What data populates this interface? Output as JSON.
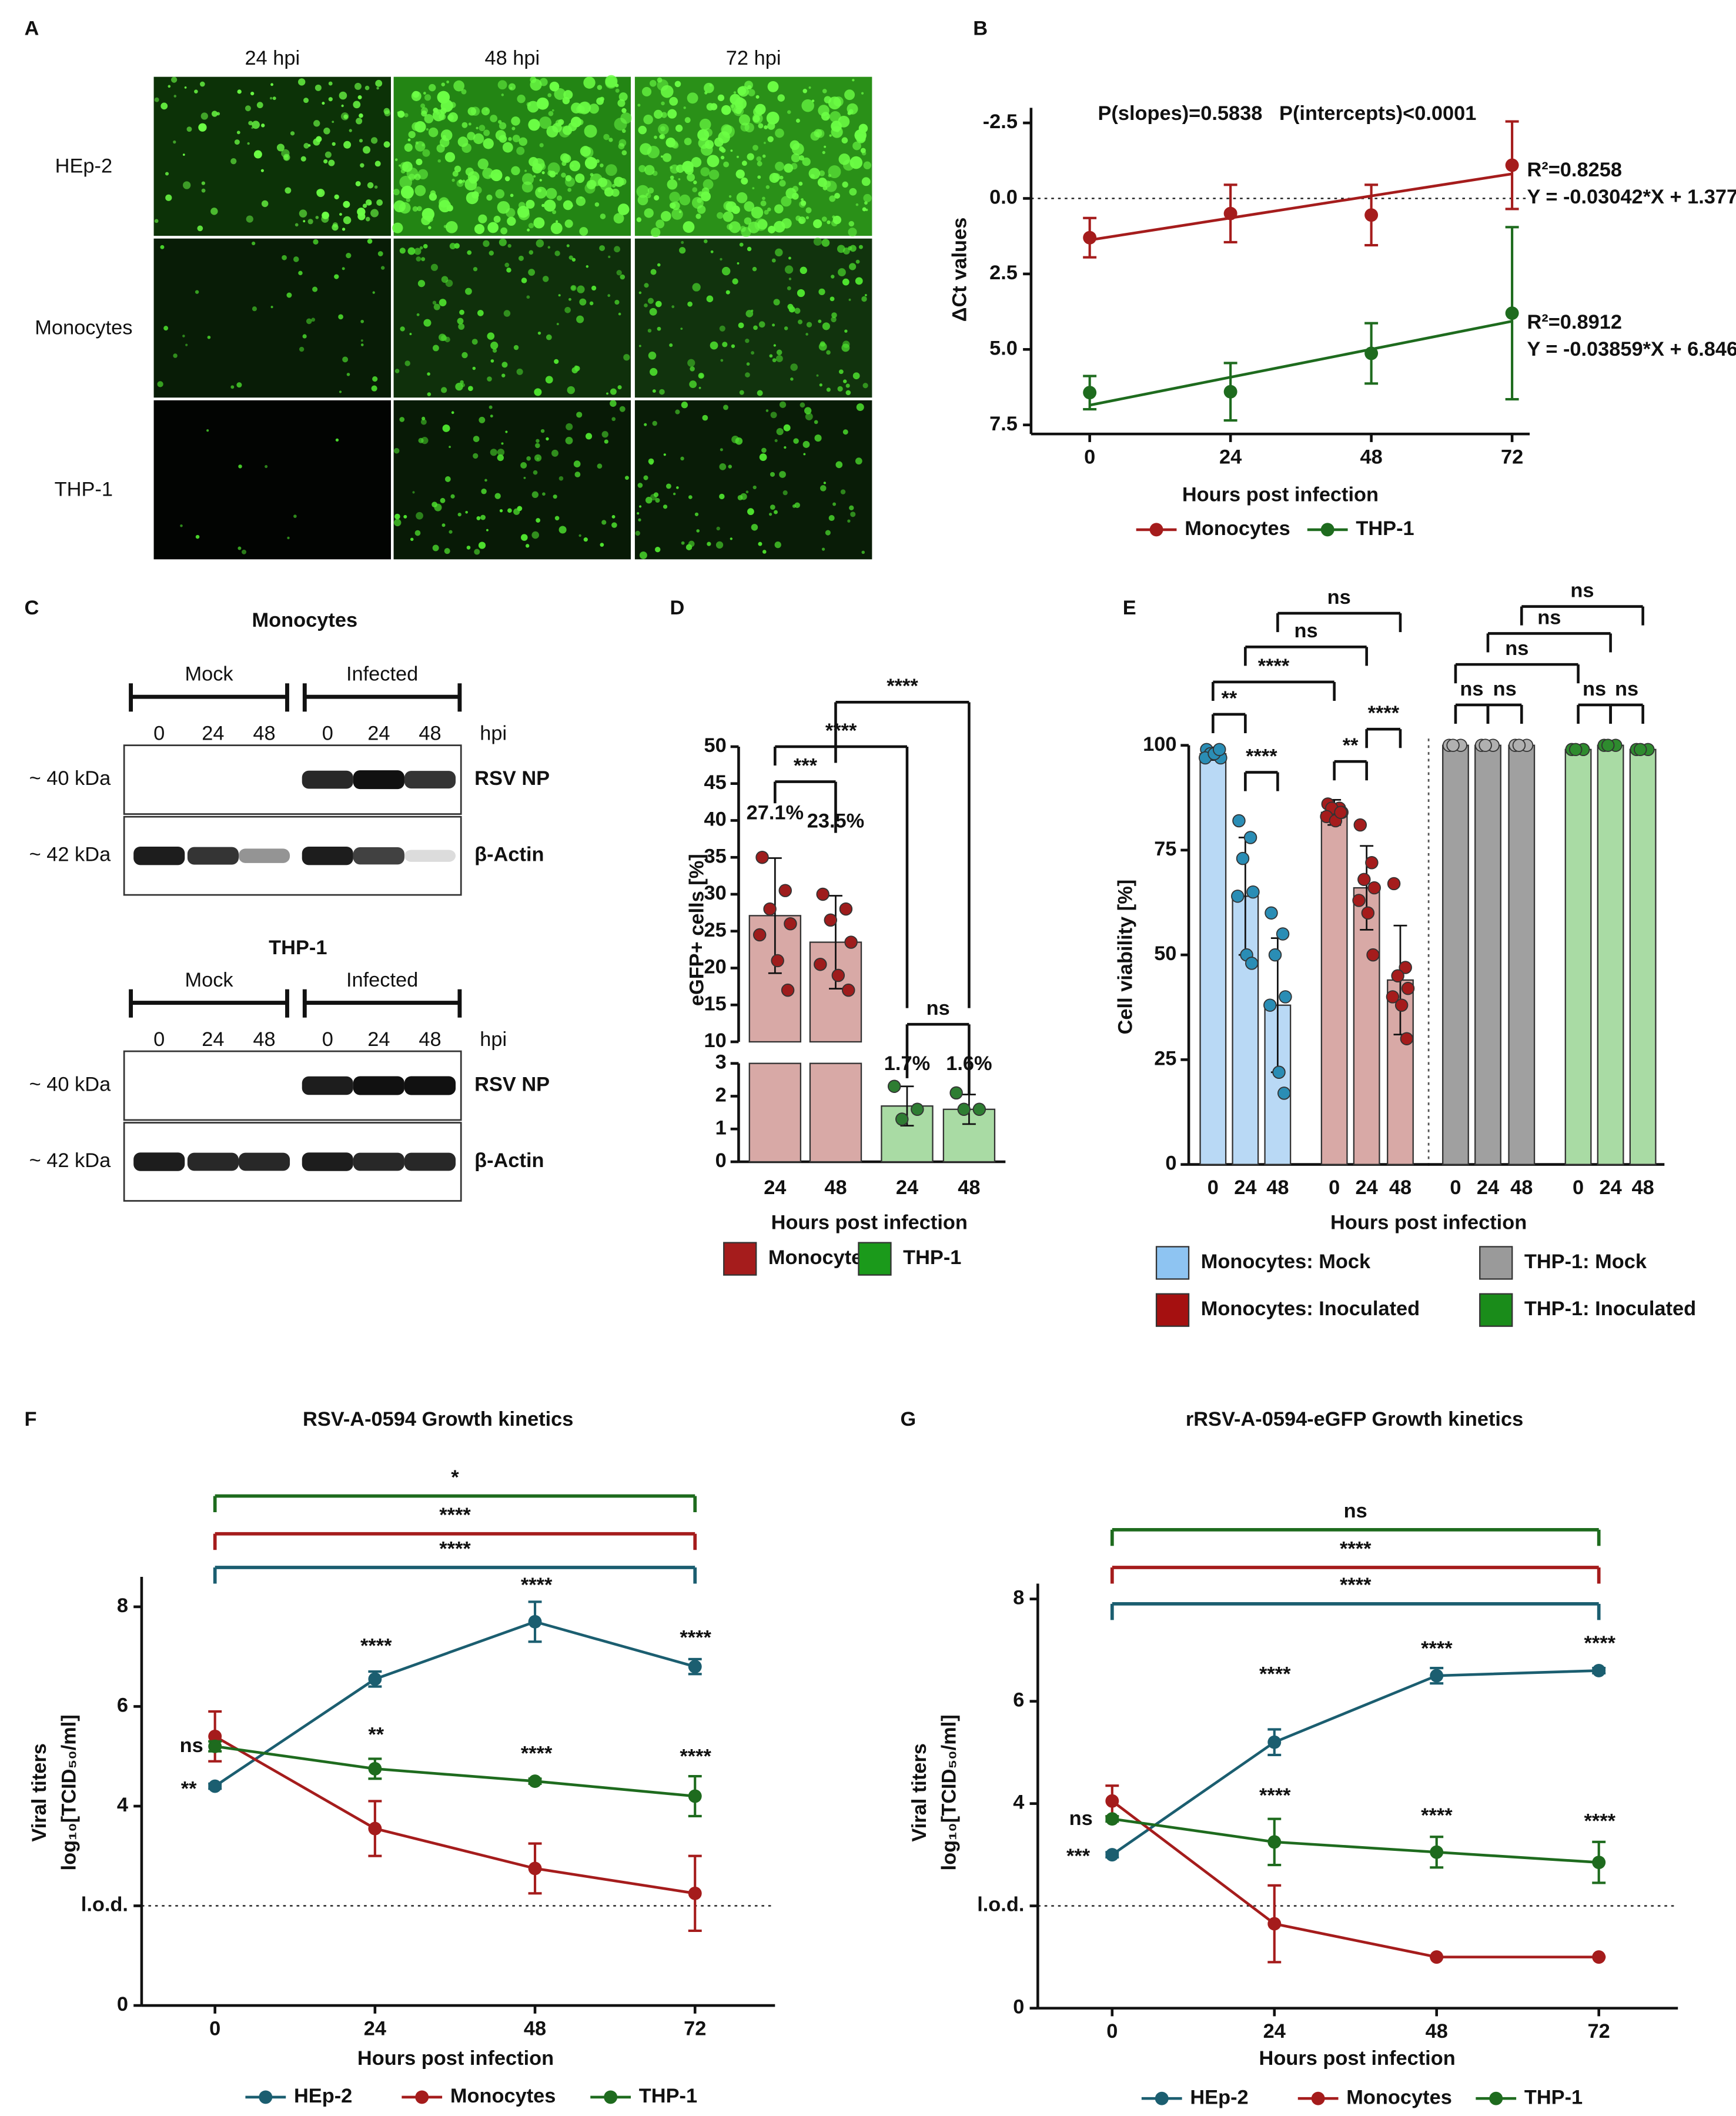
{
  "panel_labels": [
    "A",
    "B",
    "C",
    "D",
    "E",
    "F",
    "G"
  ],
  "panel_a": {
    "columns": [
      "24 hpi",
      "48 hpi",
      "72 hpi"
    ],
    "rows": [
      "HEp-2",
      "Monocytes",
      "THP-1"
    ]
  },
  "panel_c": {
    "blots": [
      {
        "title": "Monocytes",
        "groups": [
          "Mock",
          "Infected"
        ],
        "lanes": [
          "0",
          "24",
          "48",
          "0",
          "24",
          "48"
        ],
        "unit": "hpi",
        "rows": [
          {
            "size": "~ 40 kDa",
            "label": "RSV NP"
          },
          {
            "size": "~ 42 kDa",
            "label": "β-Actin"
          }
        ]
      },
      {
        "title": "THP-1",
        "groups": [
          "Mock",
          "Infected"
        ],
        "lanes": [
          "0",
          "24",
          "48",
          "0",
          "24",
          "48"
        ],
        "unit": "hpi",
        "rows": [
          {
            "size": "~ 40 kDa",
            "label": "RSV NP"
          },
          {
            "size": "~ 42 kDa",
            "label": "β-Actin"
          }
        ]
      }
    ]
  },
  "chart_data": [
    {
      "type": "line",
      "annotation": "P(slopes)=0.5838   P(intercepts)<0.0001",
      "xlabel": "Hours post infection",
      "ylabel": "ΔCt values",
      "x": [
        0,
        24,
        48,
        72
      ],
      "xlim": [
        -10,
        75
      ],
      "xticks": [
        0,
        24,
        48,
        72
      ],
      "ylim": [
        -3,
        7.8
      ],
      "y_inverted": true,
      "yticks": [
        -2.5,
        {
          "value": 0,
          "label": "0.0"
        },
        2.5,
        {
          "value": 5,
          "label": "5.0"
        },
        7.5
      ],
      "hline": 0,
      "series": [
        {
          "name": "Monocytes",
          "color": "#a51c1c",
          "values": [
            1.3,
            0.5,
            0.55,
            -1.1
          ],
          "errors": [
            0.65,
            0.95,
            1.0,
            1.45
          ],
          "fit": {
            "slope": -0.03042,
            "intercept": 1.377
          },
          "fit_labels": [
            "R²=0.8258",
            "Y = -0.03042*X + 1.377"
          ]
        },
        {
          "name": "THP-1",
          "color": "#1e6b1e",
          "values": [
            6.43,
            6.4,
            5.13,
            3.8
          ],
          "errors": [
            0.55,
            0.95,
            1.0,
            2.85
          ],
          "fit": {
            "slope": -0.03859,
            "intercept": 6.846
          },
          "fit_labels": [
            "R²=0.8912",
            "Y = -0.03859*X + 6.846"
          ]
        }
      ]
    },
    {
      "type": "bar",
      "xlabel": "Hours post infection",
      "ylabel": "eGFP+ cells [%]",
      "categories": [
        "24",
        "48"
      ],
      "ylim": [
        0,
        3
      ],
      "yticks": [
        0,
        1,
        2,
        3
      ],
      "ylim_upper": [
        10,
        50
      ],
      "yticks_upper": [
        10,
        15,
        20,
        25,
        30,
        35,
        40,
        45,
        50
      ],
      "brackets": [
        "***",
        "****",
        "****",
        "ns"
      ],
      "series": [
        {
          "name": "Monocytes",
          "color": "#d8a9a6",
          "legend_color": "#a51c1c",
          "point_color": "#9e1c1c",
          "values": [
            27.1,
            23.5
          ],
          "value_labels": [
            "27.1%",
            "23.5%"
          ],
          "errors": [
            7.8,
            6.3
          ],
          "points": [
            [
              35,
              30.5,
              28,
              26,
              24.5,
              21,
              17
            ],
            [
              30,
              28,
              26.5,
              23.5,
              20.5,
              19,
              17
            ]
          ]
        },
        {
          "name": "THP-1",
          "color": "#a9dba4",
          "legend_color": "#1b9a1b",
          "point_color": "#2e7d32",
          "values": [
            1.7,
            1.6
          ],
          "value_labels": [
            "1.7%",
            "1.6%"
          ],
          "errors": [
            0.6,
            0.45
          ],
          "points": [
            [
              2.3,
              1.6,
              1.3
            ],
            [
              2.1,
              1.6,
              1.6
            ]
          ]
        }
      ]
    },
    {
      "type": "bar",
      "xlabel": "Hours post infection",
      "ylabel": "Cell viability [%]",
      "categories": [
        "0",
        "24",
        "48"
      ],
      "ylim": [
        0,
        100
      ],
      "yticks": [
        0,
        25,
        50,
        75,
        100
      ],
      "brackets": [
        "**",
        "****",
        "**",
        "****",
        "****",
        "ns",
        "ns",
        "ns",
        "ns",
        "ns",
        "ns",
        "ns",
        "ns",
        "ns"
      ],
      "series": [
        {
          "name": "Monocytes: Mock",
          "color": "#b9d9f5",
          "legend_color": "#8ec4f2",
          "point_color": "#2a8db5",
          "values": [
            98,
            64,
            38
          ],
          "errors": [
            1.5,
            14,
            16
          ],
          "points": [
            [
              99,
              98,
              98,
              97,
              97,
              98,
              99
            ],
            [
              82,
              78,
              73,
              65,
              64,
              50,
              48
            ],
            [
              60,
              55,
              50,
              40,
              38,
              22,
              17
            ]
          ]
        },
        {
          "name": "Monocytes: Inoculated",
          "color": "#d8a9a6",
          "legend_color": "#a51010",
          "point_color": "#a51c1c",
          "values": [
            84,
            66,
            44
          ],
          "errors": [
            3,
            10,
            13
          ],
          "points": [
            [
              86,
              85,
              85,
              84,
              83,
              82,
              84
            ],
            [
              81,
              72,
              68,
              66,
              63,
              60,
              50
            ],
            [
              67,
              47,
              45,
              42,
              40,
              38,
              30
            ]
          ]
        },
        {
          "name": "THP-1: Mock",
          "color": "#a0a0a0",
          "legend_color": "#9a9a9a",
          "point_color": "#b0b0b0",
          "values": [
            100,
            100,
            100
          ],
          "errors": [
            0.5,
            0.5,
            0.5
          ],
          "points": [
            [
              100,
              100,
              100
            ],
            [
              100,
              100,
              100
            ],
            [
              100,
              100,
              100
            ]
          ]
        },
        {
          "name": "THP-1: Inoculated",
          "color": "#a9dba4",
          "legend_color": "#1a8c1a",
          "point_color": "#2e8b2e",
          "values": [
            99,
            100,
            99
          ],
          "errors": [
            0.5,
            0.3,
            0.5
          ],
          "points": [
            [
              99,
              99,
              99
            ],
            [
              100,
              100,
              100
            ],
            [
              99,
              99,
              99
            ]
          ]
        }
      ]
    },
    {
      "type": "line",
      "title": "RSV-A-0594 Growth kinetics",
      "xlabel": "Hours post infection",
      "ylabel": [
        "Viral titers",
        "log₁₀[TCID₅₀/ml]"
      ],
      "x": [
        0,
        24,
        48,
        72
      ],
      "xlim": [
        -11,
        84
      ],
      "xticks": [
        0,
        24,
        48,
        72
      ],
      "ylim": [
        0,
        8.6
      ],
      "yticks": [
        0,
        {
          "value": 2,
          "label": "l.o.d."
        },
        4,
        6,
        8
      ],
      "hline": 2,
      "brackets": [
        "*",
        "****",
        "****"
      ],
      "significance": [
        "**",
        "ns",
        "****",
        "**",
        "****",
        "****",
        "****",
        "****"
      ],
      "series": [
        {
          "name": "HEp-2",
          "color": "#1b5e70",
          "values": [
            4.4,
            6.55,
            7.7,
            6.8
          ],
          "errors": [
            0.05,
            0.15,
            0.4,
            0.15
          ]
        },
        {
          "name": "Monocytes",
          "color": "#a51c1c",
          "values": [
            5.4,
            3.55,
            2.75,
            2.25
          ],
          "errors": [
            0.5,
            0.55,
            0.5,
            0.75
          ]
        },
        {
          "name": "THP-1",
          "color": "#1e6b1e",
          "values": [
            5.2,
            4.75,
            4.5,
            4.2
          ],
          "errors": [
            0.1,
            0.2,
            0.05,
            0.4
          ]
        }
      ]
    },
    {
      "type": "line",
      "title": "rRSV-A-0594-eGFP Growth kinetics",
      "xlabel": "Hours post infection",
      "ylabel": [
        "Viral titers",
        "log₁₀[TCID₅₀/ml]"
      ],
      "x": [
        0,
        24,
        48,
        72
      ],
      "xlim": [
        -11,
        83.7
      ],
      "xticks": [
        0,
        24,
        48,
        72
      ],
      "ylim": [
        0,
        8.3
      ],
      "yticks": [
        0,
        {
          "value": 2,
          "label": "l.o.d."
        },
        4,
        6,
        8
      ],
      "hline": 2,
      "brackets": [
        "ns",
        "****",
        "****"
      ],
      "significance": [
        "***",
        "ns",
        "****",
        "****",
        "****",
        "****",
        "****",
        "****"
      ],
      "series": [
        {
          "name": "HEp-2",
          "color": "#1b5e70",
          "values": [
            3.0,
            5.2,
            6.5,
            6.6
          ],
          "errors": [
            0.05,
            0.25,
            0.15,
            0.05
          ]
        },
        {
          "name": "Monocytes",
          "color": "#a51c1c",
          "values": [
            4.05,
            1.65,
            1.0,
            1.0
          ],
          "errors": [
            0.3,
            0.75,
            0,
            0
          ]
        },
        {
          "name": "THP-1",
          "color": "#1e6b1e",
          "values": [
            3.7,
            3.25,
            3.05,
            2.85
          ],
          "errors": [
            0.05,
            0.45,
            0.3,
            0.4
          ]
        }
      ]
    }
  ]
}
